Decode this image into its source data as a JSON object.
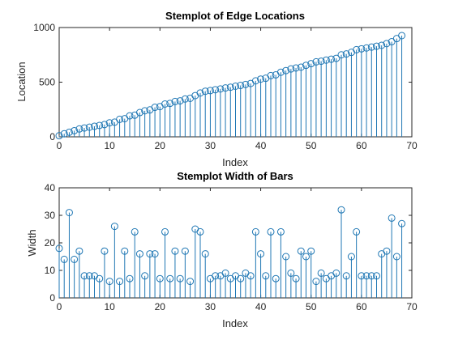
{
  "chart_data": [
    {
      "type": "stem",
      "title": "Stemplot of Edge Locations",
      "xlabel": "Index",
      "ylabel": "Location",
      "xlim": [
        0,
        70
      ],
      "ylim": [
        0,
        1000
      ],
      "xticks": [
        0,
        10,
        20,
        30,
        40,
        50,
        60,
        70
      ],
      "yticks": [
        0,
        500,
        1000
      ],
      "color": "#1f77b4",
      "x": [
        0,
        1,
        2,
        3,
        4,
        5,
        6,
        7,
        8,
        9,
        10,
        11,
        12,
        13,
        14,
        15,
        16,
        17,
        18,
        19,
        20,
        21,
        22,
        23,
        24,
        25,
        26,
        27,
        28,
        29,
        30,
        31,
        32,
        33,
        34,
        35,
        36,
        37,
        38,
        39,
        40,
        41,
        42,
        43,
        44,
        45,
        46,
        47,
        48,
        49,
        50,
        51,
        52,
        53,
        54,
        55,
        56,
        57,
        58,
        59,
        60,
        61,
        62,
        63,
        64,
        65,
        66,
        67,
        68
      ],
      "values": [
        10,
        28,
        42,
        56,
        72,
        81,
        88,
        96,
        104,
        112,
        128,
        134,
        160,
        166,
        192,
        198,
        222,
        238,
        246,
        270,
        276,
        300,
        306,
        323,
        329,
        346,
        352,
        377,
        401,
        417,
        423,
        431,
        438,
        447,
        454,
        463,
        470,
        479,
        488,
        512,
        528,
        536,
        560,
        567,
        591,
        606,
        621,
        630,
        637,
        654,
        669,
        686,
        692,
        702,
        710,
        718,
        750,
        758,
        773,
        797,
        805,
        813,
        821,
        829,
        837,
        853,
        870,
        899,
        926
      ]
    },
    {
      "type": "stem",
      "title": "Stemplot Width of Bars",
      "xlabel": "Index",
      "ylabel": "Width",
      "xlim": [
        0,
        70
      ],
      "ylim": [
        0,
        40
      ],
      "xticks": [
        0,
        10,
        20,
        30,
        40,
        50,
        60,
        70
      ],
      "yticks": [
        0,
        10,
        20,
        30,
        40
      ],
      "color": "#1f77b4",
      "x": [
        0,
        1,
        2,
        3,
        4,
        5,
        6,
        7,
        8,
        9,
        10,
        11,
        12,
        13,
        14,
        15,
        16,
        17,
        18,
        19,
        20,
        21,
        22,
        23,
        24,
        25,
        26,
        27,
        28,
        29,
        30,
        31,
        32,
        33,
        34,
        35,
        36,
        37,
        38,
        39,
        40,
        41,
        42,
        43,
        44,
        45,
        46,
        47,
        48,
        49,
        50,
        51,
        52,
        53,
        54,
        55,
        56,
        57,
        58,
        59,
        60,
        61,
        62,
        63,
        64,
        65,
        66,
        67,
        68
      ],
      "values": [
        18,
        14,
        31,
        14,
        17,
        8,
        8,
        8,
        7,
        17,
        6,
        26,
        6,
        17,
        7,
        24,
        16,
        8,
        16,
        16,
        7,
        24,
        7,
        17,
        7,
        17,
        6,
        25,
        24,
        16,
        7,
        8,
        8,
        9,
        7,
        8,
        7,
        9,
        8,
        24,
        16,
        8,
        24,
        7,
        24,
        15,
        9,
        7,
        17,
        15,
        17,
        6,
        9,
        7,
        8,
        9,
        32,
        8,
        15,
        24,
        8,
        8,
        8,
        8,
        16,
        17,
        29,
        15,
        27
      ]
    }
  ]
}
